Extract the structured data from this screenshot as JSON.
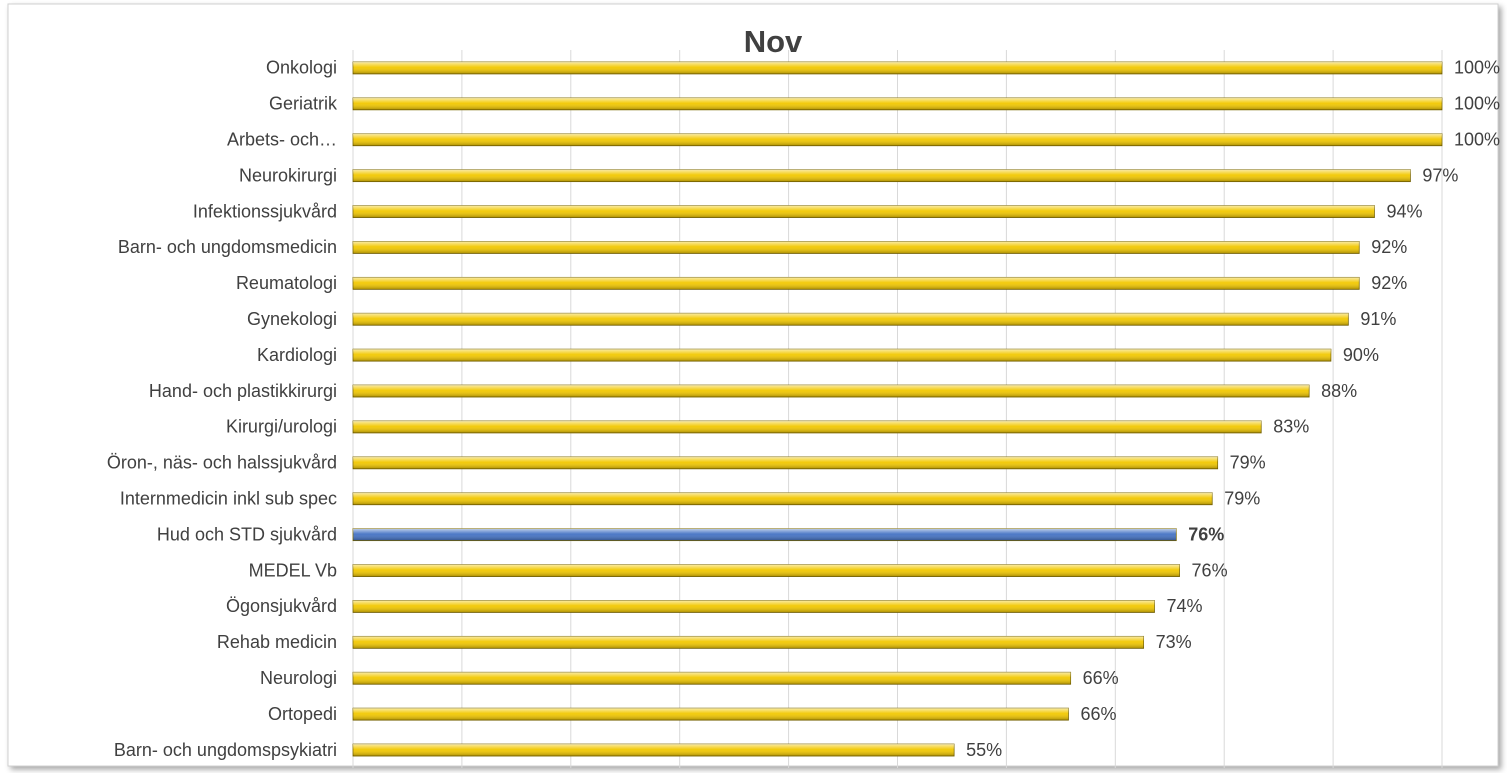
{
  "chart_data": {
    "type": "barh",
    "title": "Nov",
    "categories": [
      "Onkologi",
      "Geriatrik",
      "Arbets- och…",
      "Neurokirurgi",
      "Infektionssjukvård",
      "Barn- och ungdomsmedicin",
      "Reumatologi",
      "Gynekologi",
      "Kardiologi",
      "Hand- och plastikkirurgi",
      "Kirurgi/urologi ",
      "Öron-, näs- och halssjukvård",
      "Internmedicin inkl sub spec",
      "Hud och STD sjukvård",
      "MEDEL Vb",
      "Ögonsjukvård",
      "Rehab medicin",
      "Neurologi",
      "Ortopedi ",
      "Barn- och ungdomspsykiatri "
    ],
    "values": [
      100,
      100,
      100,
      97.1,
      93.8,
      92.4,
      92.4,
      91.4,
      89.8,
      87.8,
      83.4,
      79.4,
      78.9,
      75.6,
      75.9,
      73.6,
      72.6,
      65.9,
      65.7,
      55.2
    ],
    "value_labels": [
      "100%",
      "100%",
      "100%",
      "97%",
      "94%",
      "92%",
      "92%",
      "91%",
      "90%",
      "88%",
      "83%",
      "79%",
      "79%",
      "76%",
      "76%",
      "74%",
      "73%",
      "66%",
      "66%",
      "55%"
    ],
    "colors": [
      "#f2c800",
      "#f2c800",
      "#f2c800",
      "#f2c800",
      "#f2c800",
      "#f2c800",
      "#f2c800",
      "#f2c800",
      "#f2c800",
      "#f2c800",
      "#f2c800",
      "#f2c800",
      "#f2c800",
      "#4472c4",
      "#f2c800",
      "#f2c800",
      "#f2c800",
      "#f2c800",
      "#f2c800",
      "#f2c800"
    ],
    "value_label_bold": [
      false,
      false,
      false,
      false,
      false,
      false,
      false,
      false,
      false,
      false,
      false,
      false,
      false,
      true,
      false,
      false,
      false,
      false,
      false,
      false
    ],
    "xlim": [
      0,
      100
    ],
    "xticks": [
      0,
      10,
      20,
      30,
      40,
      50,
      60,
      70,
      80,
      90,
      100
    ],
    "grid": true
  }
}
